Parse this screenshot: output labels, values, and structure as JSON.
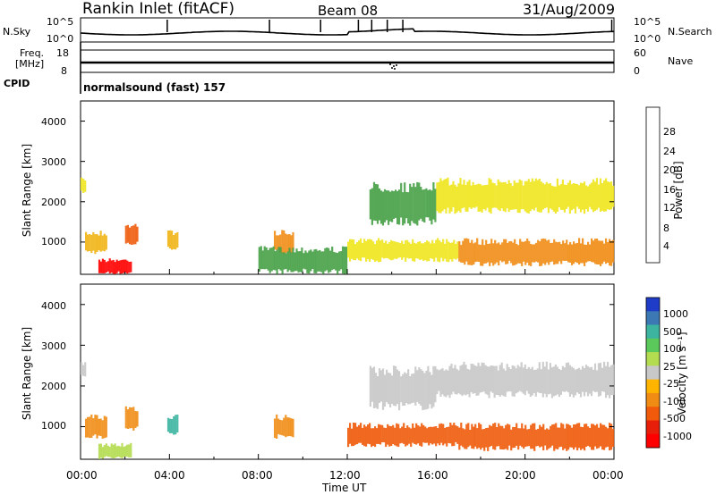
{
  "header": {
    "station": "Rankin Inlet (fitACF)",
    "beam": "Beam 08",
    "date": "31/Aug/2009"
  },
  "top_panels": {
    "nsky_label": "N.Sky",
    "nsearch_label": "N.Search",
    "nsky_tick_high": "10^5",
    "nsky_tick_low": "10^0",
    "nsearch_tick_high": "10^5",
    "nsearch_tick_low": "10^0",
    "freq_label_1": "Freq.",
    "freq_label_2": "[MHz]",
    "freq_tick_high": "18",
    "freq_tick_low": "8",
    "nave_label": "Nave",
    "nave_tick_high": "60",
    "nave_tick_low": "0",
    "cpid_label": "CPID",
    "cpid_value": "normalsound (fast) 157"
  },
  "colors": {
    "power": [
      "#1432ff",
      "#2850c8",
      "#2a5ab4",
      "#3c7896",
      "#5a9664",
      "#46a046",
      "#78c83c",
      "#f0e61e",
      "#f0b414",
      "#f08c14",
      "#f05a0a",
      "#e61e0a",
      "#ff0000"
    ],
    "velocity": [
      "#1e3cc8",
      "#3c78b4",
      "#3cb4a0",
      "#5ac85a",
      "#b4dc50",
      "#c8c8c8",
      "#ffb400",
      "#f08c14",
      "#f05a0a",
      "#e61e0a",
      "#ff0000"
    ]
  },
  "chart_data": [
    {
      "type": "heatmap",
      "quantity": "Power",
      "ylabel": "Slant Range [km]",
      "yticks": [
        "1000",
        "2000",
        "3000",
        "4000"
      ],
      "ylim": [
        200,
        4500
      ],
      "colorbar_label": "Power [dB]",
      "colorbar_ticks": [
        "4",
        "8",
        "12",
        "16",
        "20",
        "24",
        "28"
      ],
      "regions": [
        {
          "t0": 0.0,
          "t1": 0.25,
          "r0": 2200,
          "r1": 2600,
          "value": 18
        },
        {
          "t0": 0.2,
          "t1": 1.2,
          "r0": 700,
          "r1": 1300,
          "value": 20
        },
        {
          "t0": 0.8,
          "t1": 2.3,
          "r0": 200,
          "r1": 600,
          "value": 30
        },
        {
          "t0": 2.0,
          "t1": 2.6,
          "r0": 900,
          "r1": 1500,
          "value": 24
        },
        {
          "t0": 3.9,
          "t1": 4.4,
          "r0": 800,
          "r1": 1300,
          "value": 20
        },
        {
          "t0": 8.7,
          "t1": 9.6,
          "r0": 700,
          "r1": 1300,
          "value": 22
        },
        {
          "t0": 8.0,
          "t1": 12.0,
          "r0": 200,
          "r1": 900,
          "value": 12
        },
        {
          "t0": 12.0,
          "t1": 17.0,
          "r0": 500,
          "r1": 1100,
          "value": 18
        },
        {
          "t0": 13.0,
          "t1": 16.0,
          "r0": 1400,
          "r1": 2500,
          "value": 12
        },
        {
          "t0": 16.0,
          "t1": 24.0,
          "r0": 1700,
          "r1": 2600,
          "value": 18
        },
        {
          "t0": 17.0,
          "t1": 24.0,
          "r0": 400,
          "r1": 1100,
          "value": 22
        }
      ]
    },
    {
      "type": "heatmap",
      "quantity": "Velocity",
      "ylabel": "Slant Range [km]",
      "yticks": [
        "1000",
        "2000",
        "3000",
        "4000"
      ],
      "ylim": [
        200,
        4500
      ],
      "xlabel": "Time UT",
      "xticks": [
        "00:00",
        "04:00",
        "08:00",
        "12:00",
        "16:00",
        "20:00",
        "00:00"
      ],
      "xlim": [
        0,
        24
      ],
      "colorbar_label": "Velocity [m s⁻¹]",
      "colorbar_ticks": [
        "1000",
        "500",
        "100",
        "25",
        "-25",
        "-100",
        "-500",
        "-1000"
      ],
      "regions": [
        {
          "t0": 0.0,
          "t1": 0.25,
          "r0": 2200,
          "r1": 2600,
          "value": 0
        },
        {
          "t0": 0.2,
          "t1": 1.2,
          "r0": 700,
          "r1": 1300,
          "value": -200
        },
        {
          "t0": 0.8,
          "t1": 2.3,
          "r0": 200,
          "r1": 600,
          "value": 50
        },
        {
          "t0": 2.0,
          "t1": 2.6,
          "r0": 900,
          "r1": 1500,
          "value": -150
        },
        {
          "t0": 3.9,
          "t1": 4.4,
          "r0": 800,
          "r1": 1300,
          "value": 200
        },
        {
          "t0": 8.7,
          "t1": 9.6,
          "r0": 700,
          "r1": 1300,
          "value": -200
        },
        {
          "t0": 12.0,
          "t1": 17.0,
          "r0": 500,
          "r1": 1100,
          "value": -300
        },
        {
          "t0": 13.0,
          "t1": 16.0,
          "r0": 1400,
          "r1": 2500,
          "value": 0
        },
        {
          "t0": 16.0,
          "t1": 24.0,
          "r0": 1700,
          "r1": 2600,
          "value": 0
        },
        {
          "t0": 17.0,
          "t1": 24.0,
          "r0": 400,
          "r1": 1100,
          "value": -300
        }
      ]
    }
  ]
}
